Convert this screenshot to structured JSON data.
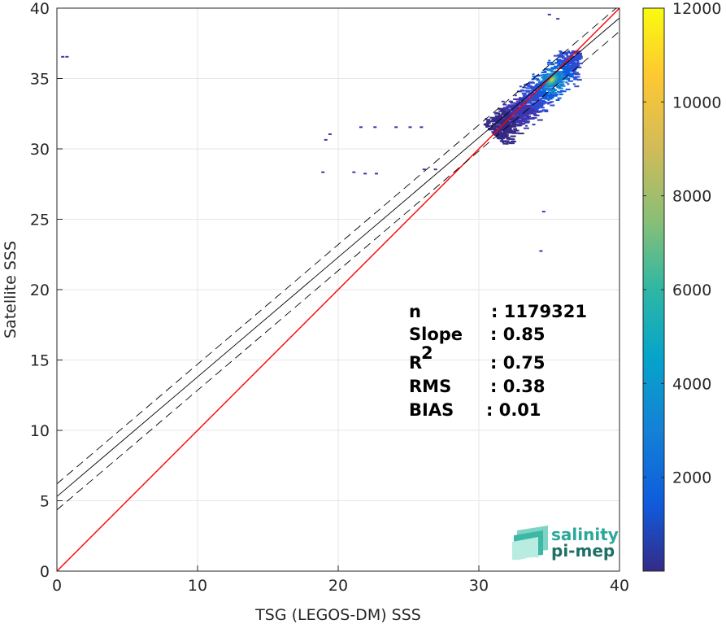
{
  "chart_data": {
    "type": "heatmap",
    "xlabel": "TSG (LEGOS-DM) SSS",
    "ylabel": "Satellite SSS",
    "xlim": [
      0,
      40
    ],
    "ylim": [
      0,
      40
    ],
    "xticks": [
      0,
      10,
      20,
      30,
      40
    ],
    "yticks": [
      0,
      5,
      10,
      15,
      20,
      25,
      30,
      35,
      40
    ],
    "grid": true,
    "colorbar": {
      "range": [
        0,
        12000
      ],
      "ticks": [
        2000,
        4000,
        6000,
        8000,
        10000,
        12000
      ],
      "colormap": "parula"
    },
    "density_core": {
      "x_range": [
        28,
        37
      ],
      "y_range": [
        28.5,
        37
      ],
      "peak": [
        35.2,
        34.9
      ]
    },
    "outliers": [
      [
        0.3,
        36.6
      ],
      [
        0.6,
        36.6
      ],
      [
        19.0,
        30.7
      ],
      [
        19.3,
        31.1
      ],
      [
        18.8,
        28.4
      ],
      [
        21.0,
        28.4
      ],
      [
        21.8,
        28.3
      ],
      [
        22.6,
        28.3
      ],
      [
        21.5,
        31.6
      ],
      [
        22.5,
        31.6
      ],
      [
        24.0,
        31.6
      ],
      [
        25.0,
        31.6
      ],
      [
        25.8,
        31.6
      ],
      [
        26.0,
        28.6
      ],
      [
        26.8,
        28.6
      ],
      [
        34.5,
        25.6
      ],
      [
        34.3,
        22.8
      ],
      [
        34.9,
        39.6
      ],
      [
        35.5,
        39.3
      ]
    ],
    "lines": {
      "identity": {
        "color": "#ff0000",
        "slope": 1,
        "intercept": 0
      },
      "fit": {
        "color": "#000000",
        "slope": 0.85,
        "intercept": 5.3
      },
      "fit_upper": {
        "color": "#000000",
        "style": "dashed",
        "slope": 0.85,
        "intercept": 6.2
      },
      "fit_lower": {
        "color": "#000000",
        "style": "dashed",
        "slope": 0.85,
        "intercept": 4.35
      }
    },
    "stats": [
      {
        "name": "n",
        "colon": ": 1179321"
      },
      {
        "name": "Slope",
        "colon": ": 0.85"
      },
      {
        "name": "R",
        "sup": "2",
        "colon": ": 0.75"
      },
      {
        "name": "RMS",
        "colon": ": 0.38"
      },
      {
        "name": "BIAS",
        "colon": ": 0.01"
      }
    ],
    "logo": {
      "line1": "salinity",
      "line2": "pi-mep"
    }
  }
}
